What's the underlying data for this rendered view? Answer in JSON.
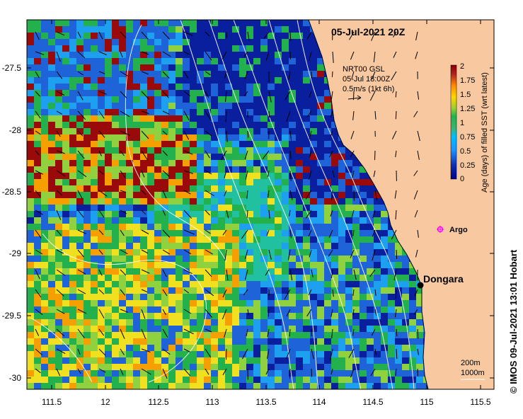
{
  "map": {
    "title": "05-Jul-2021 20Z",
    "lon_ticks": [
      "111.5",
      "12",
      "112.5",
      "113",
      "113.5",
      "114",
      "114.5",
      "115",
      "115.5"
    ],
    "lat_ticks": [
      "-27.5",
      "-28",
      "-28.5",
      "-29",
      "-29.5",
      "-30"
    ],
    "current_legend": {
      "line1": "NRT00 GSL",
      "line2": "05-Jul 18:00Z",
      "line3": "0.5m/s (1kt 6h)"
    },
    "colorbar": {
      "label": "Age (days) of filled SST (wrt latest)",
      "ticks": [
        "2",
        "1.75",
        "1.5",
        "1.25",
        "1",
        "0.75",
        "0.5",
        "0.25",
        "0"
      ],
      "colors": [
        "#8b0000",
        "#b22222",
        "#ff8c00",
        "#ffd700",
        "#9acd32",
        "#22b14c",
        "#3cb371",
        "#00bfff",
        "#1e90ff",
        "#0b2fb0",
        "#00008b"
      ]
    },
    "places": {
      "dongara": "Dongara",
      "argo": "Argo"
    },
    "isobath_labels": {
      "line1": "200m",
      "line2": "1000m"
    },
    "credit": "© IMOS 09-Jul-2021 13:01 Hobart",
    "colors": {
      "land": "#f8c9a0",
      "argo": "#ff00ff",
      "isobath": "#ffffff"
    }
  }
}
